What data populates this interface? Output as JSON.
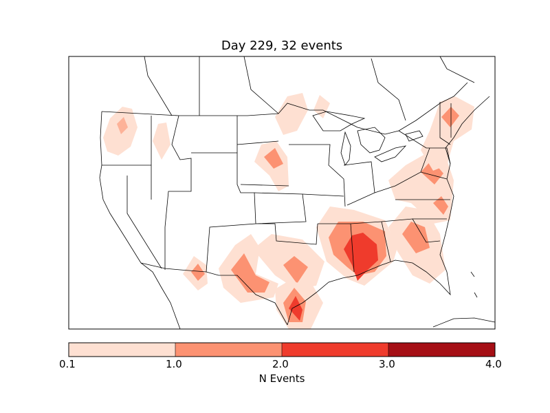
{
  "title": "Day 229, 32 events",
  "colorbar": {
    "label": "N Events",
    "ticks": [
      "0.1",
      "1.0",
      "2.0",
      "3.0",
      "4.0"
    ],
    "bins": [
      {
        "from": 0.1,
        "to": 1.0,
        "color": "#fee0d2"
      },
      {
        "from": 1.0,
        "to": 2.0,
        "color": "#fc9272"
      },
      {
        "from": 2.0,
        "to": 3.0,
        "color": "#ef3b2c"
      },
      {
        "from": 3.0,
        "to": 4.0,
        "color": "#a50f15"
      }
    ]
  },
  "colors": {
    "level1": "#fee0d2",
    "level2": "#fc9272",
    "level3": "#ef3b2c",
    "level4": "#a50f15",
    "border": "#000000"
  }
}
